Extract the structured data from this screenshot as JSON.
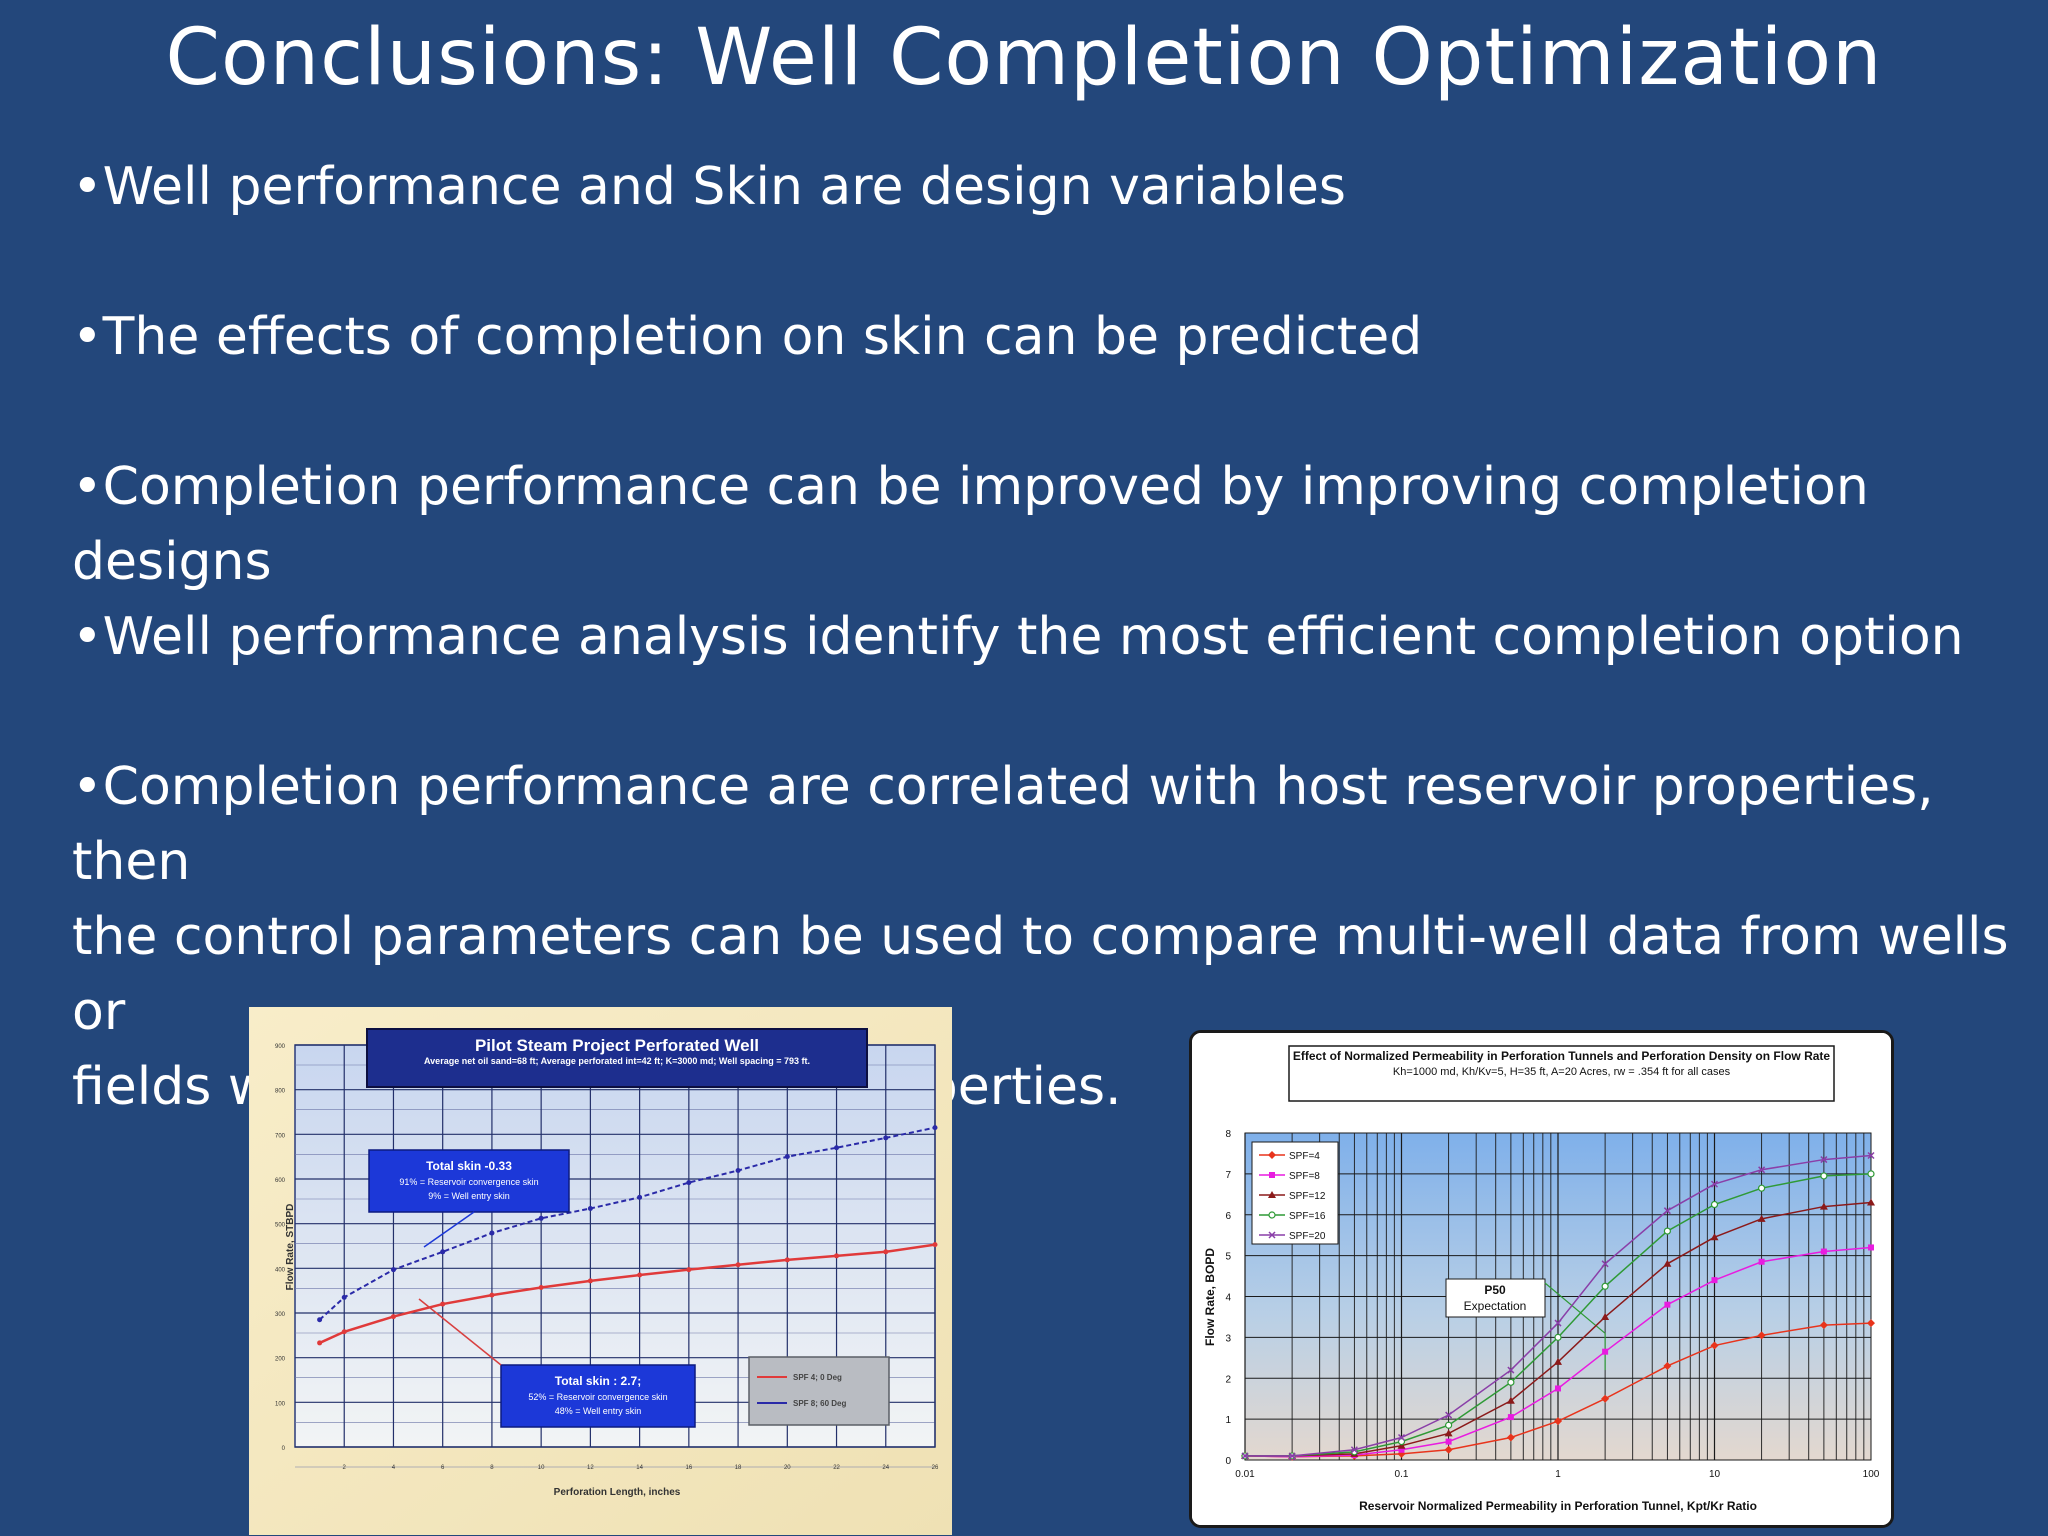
{
  "slide": {
    "title": "Conclusions: Well Completion Optimization",
    "bullets": [
      "•Well performance and Skin are design variables",
      "•The effects of completion on skin can be predicted",
      "•Completion performance can be improved by improving completion designs",
      "•Well performance analysis identify the most efficient completion option",
      "•Completion performance are correlated with host reservoir properties, then\nthe control parameters can be used to compare multi-well data from wells or\nfields with different reservoir properties."
    ]
  },
  "colors": {
    "background": "#23477b",
    "text": "#ffffff"
  },
  "chart_data": [
    {
      "type": "line",
      "title": "Pilot Steam Project Perforated Well",
      "subtitle": "Average net oil sand=68 ft; Average perforated int=42 ft; K=3000 md; Well spacing = 793 ft.",
      "xlabel": "Perforation Length, inches",
      "ylabel": "Flow Rate, STBPD",
      "x": [
        1,
        2,
        4,
        6,
        8,
        10,
        12,
        14,
        16,
        18,
        20,
        22,
        24,
        26
      ],
      "xticks": [
        "2",
        "4",
        "6",
        "8",
        "10",
        "12",
        "14",
        "16",
        "18",
        "20",
        "22",
        "24",
        "26"
      ],
      "yticks": [
        "0",
        "100",
        "200",
        "300",
        "400",
        "500",
        "600",
        "700",
        "800",
        "900"
      ],
      "ylim": [
        0,
        900
      ],
      "xlim": [
        0,
        26
      ],
      "series": [
        {
          "name": "SPF 4; 0 Deg",
          "color": "#e03a3a",
          "values": [
            233,
            258,
            292,
            320,
            340,
            357,
            372,
            385,
            397,
            408,
            419,
            428,
            437,
            453
          ]
        },
        {
          "name": "SPF 8; 60 Deg",
          "color": "#2a2aa8",
          "values": [
            285,
            335,
            397,
            437,
            479,
            512,
            534,
            559,
            592,
            619,
            650,
            670,
            692,
            715
          ]
        }
      ],
      "annotations": [
        {
          "title": "Total skin -0.33",
          "lines": [
            "91% = Reservoir convergence skin",
            "9% = Well entry skin"
          ]
        },
        {
          "title": "Total skin : 2.7;",
          "lines": [
            "52% = Reservoir convergence skin",
            "48% = Well entry skin"
          ]
        }
      ],
      "grid": true,
      "legend": "bottom-right"
    },
    {
      "type": "line",
      "title": "Effect of Normalized Permeability in Perforation Tunnels and Perforation Density on Flow Rate",
      "subtitle": "Kh=1000 md, Kh/Kv=5, H=35 ft,  A=20 Acres, rw = .354 ft for all cases",
      "xlabel": "Reservoir Normalized Permeability in Perforation Tunnel, Kpt/Kr Ratio",
      "ylabel": "Flow Rate, BOPD",
      "xscale": "log",
      "xlim": [
        0.01,
        100
      ],
      "ylim": [
        0,
        8
      ],
      "xticks": [
        "0.01",
        "0.1",
        "1",
        "10",
        "100"
      ],
      "yticks": [
        "0",
        "1",
        "2",
        "3",
        "4",
        "5",
        "6",
        "7",
        "8"
      ],
      "x": [
        0.01,
        0.02,
        0.05,
        0.1,
        0.2,
        0.5,
        1,
        2,
        5,
        10,
        20,
        50,
        100
      ],
      "series": [
        {
          "name": "SPF=4",
          "color": "#e8341c",
          "values": [
            0.1,
            0.08,
            0.1,
            0.15,
            0.25,
            0.55,
            0.95,
            1.5,
            2.3,
            2.8,
            3.05,
            3.3,
            3.35
          ]
        },
        {
          "name": "SPF=8",
          "color": "#e81ce0",
          "values": [
            0.1,
            0.08,
            0.12,
            0.25,
            0.45,
            1.05,
            1.75,
            2.65,
            3.8,
            4.4,
            4.85,
            5.1,
            5.2
          ]
        },
        {
          "name": "SPF=12",
          "color": "#8b1a1a",
          "values": [
            0.1,
            0.1,
            0.15,
            0.35,
            0.65,
            1.45,
            2.4,
            3.5,
            4.8,
            5.45,
            5.9,
            6.2,
            6.3
          ]
        },
        {
          "name": "SPF=16",
          "color": "#2f9a36",
          "values": [
            0.1,
            0.1,
            0.2,
            0.45,
            0.85,
            1.9,
            3.0,
            4.25,
            5.6,
            6.25,
            6.65,
            6.95,
            7.0
          ]
        },
        {
          "name": "SPF=20",
          "color": "#8a3fa8",
          "values": [
            0.1,
            0.1,
            0.25,
            0.55,
            1.1,
            2.2,
            3.35,
            4.8,
            6.1,
            6.75,
            7.1,
            7.35,
            7.45
          ]
        }
      ],
      "annotation": {
        "line1": "P50",
        "line2": "Expectation"
      },
      "grid": true,
      "legend": "top-left"
    }
  ]
}
